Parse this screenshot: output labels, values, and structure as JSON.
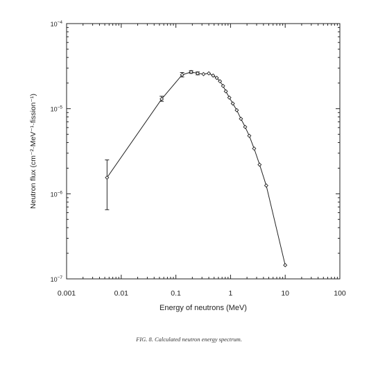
{
  "caption": "FIG. 8.  Calculated neutron energy spectrum.",
  "chart_data": {
    "type": "scatter",
    "xlabel": "Energy of neutrons (MeV)",
    "ylabel": "Neutron flux (cm⁻²·MeV⁻¹·fission⁻¹)",
    "xscale": "log",
    "yscale": "log",
    "xlim": [
      0.001,
      100
    ],
    "ylim": [
      1e-07,
      0.0001
    ],
    "x_tick_labels": [
      "0.001",
      "0.01",
      "0.1",
      "1",
      "10",
      "100"
    ],
    "y_tick_labels": [
      {
        "base": "10",
        "exp": "-7"
      },
      {
        "base": "10",
        "exp": "-6"
      },
      {
        "base": "10",
        "exp": "-5"
      },
      {
        "base": "10",
        "exp": "-4"
      }
    ],
    "grid": false,
    "series": [
      {
        "marker": "diamond",
        "connected": true,
        "color": "#222222",
        "x": [
          0.0055,
          0.055,
          0.13,
          0.19,
          0.25,
          0.32,
          0.4,
          0.48,
          0.56,
          0.64,
          0.73,
          0.82,
          0.95,
          1.1,
          1.3,
          1.55,
          1.85,
          2.2,
          2.7,
          3.4,
          4.5,
          10
        ],
        "y": [
          1.55e-06,
          1.3e-05,
          2.5e-05,
          2.7e-05,
          2.6e-05,
          2.55e-05,
          2.6e-05,
          2.45e-05,
          2.3e-05,
          2.1e-05,
          1.85e-05,
          1.6e-05,
          1.35e-05,
          1.15e-05,
          9.6e-06,
          7.6e-06,
          6.1e-06,
          4.8e-06,
          3.4e-06,
          2.2e-06,
          1.25e-06,
          1.45e-07
        ],
        "error_bars": [
          {
            "x": 0.0055,
            "low": 6.5e-07,
            "high": 2.5e-06
          },
          {
            "x": 0.055,
            "low": 1.22e-05,
            "high": 1.4e-05
          },
          {
            "x": 0.13,
            "low": 2.36e-05,
            "high": 2.66e-05
          },
          {
            "x": 0.19,
            "low": 2.6e-05,
            "high": 2.8e-05
          },
          {
            "x": 0.25,
            "low": 2.5e-05,
            "high": 2.7e-05
          }
        ]
      }
    ]
  }
}
